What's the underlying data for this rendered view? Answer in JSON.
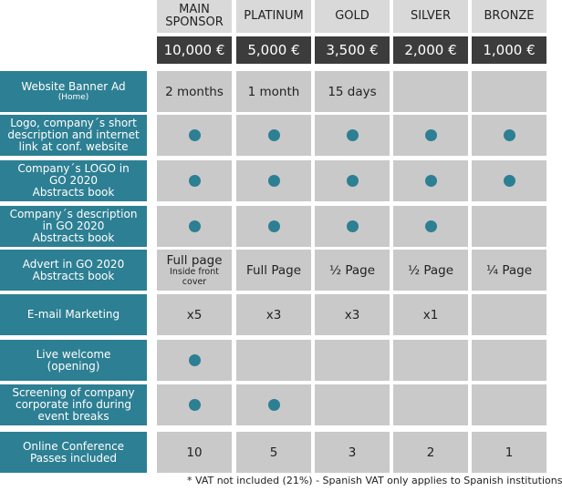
{
  "tiers": [
    "MAIN SPONSOR",
    "PLATINUM",
    "GOLD",
    "SILVER",
    "BRONZE"
  ],
  "tier_lines": [
    [
      "MAIN",
      "SPONSOR"
    ],
    [
      "PLATINUM"
    ],
    [
      "GOLD"
    ],
    [
      "SILVER"
    ],
    [
      "BRONZE"
    ]
  ],
  "prices": [
    "10,000 €",
    "5,000 €",
    "3,500 €",
    "2,000 €",
    "1,000 €"
  ],
  "rows": [
    {
      "label": [
        "Website Banner Ad"
      ],
      "sublabel": "(Home)",
      "cells": [
        {
          "text": "2 months"
        },
        {
          "text": "1 month"
        },
        {
          "text": "15 days"
        },
        {},
        {}
      ]
    },
    {
      "label": [
        "Logo, company´s short",
        "description and internet",
        "link at conf. website"
      ],
      "cells": [
        {
          "dot": true
        },
        {
          "dot": true
        },
        {
          "dot": true
        },
        {
          "dot": true
        },
        {
          "dot": true
        }
      ]
    },
    {
      "label": [
        "Company´s LOGO in",
        "GO 2020",
        "Abstracts book"
      ],
      "cells": [
        {
          "dot": true
        },
        {
          "dot": true
        },
        {
          "dot": true
        },
        {
          "dot": true
        },
        {
          "dot": true
        }
      ]
    },
    {
      "label": [
        "Company´s description",
        "in GO 2020",
        "Abstracts book"
      ],
      "cells": [
        {
          "dot": true
        },
        {
          "dot": true
        },
        {
          "dot": true
        },
        {
          "dot": true
        },
        {}
      ]
    },
    {
      "label": [
        "Advert in GO 2020",
        "Abstracts book"
      ],
      "cells": [
        {
          "text": "Full page",
          "sub": "Inside front cover"
        },
        {
          "text": "Full Page"
        },
        {
          "text": "½ Page"
        },
        {
          "text": "½ Page"
        },
        {
          "text": "¼ Page"
        }
      ]
    },
    {
      "label": [
        "E-mail Marketing"
      ],
      "cells": [
        {
          "text": "x5"
        },
        {
          "text": "x3"
        },
        {
          "text": "x3"
        },
        {
          "text": "x1"
        },
        {}
      ]
    },
    {
      "label": [
        "Live welcome",
        "(opening)"
      ],
      "cells": [
        {
          "dot": true
        },
        {},
        {},
        {},
        {}
      ]
    },
    {
      "label": [
        "Screening of company",
        "corporate info during",
        "event breaks"
      ],
      "cells": [
        {
          "dot": true
        },
        {
          "dot": true
        },
        {},
        {},
        {}
      ]
    },
    {
      "label": [
        "Online Conference",
        "Passes included"
      ],
      "cells": [
        {
          "text": "10"
        },
        {
          "text": "5"
        },
        {
          "text": "3"
        },
        {
          "text": "2"
        },
        {
          "text": "1"
        }
      ]
    }
  ],
  "footnote": "* VAT not included (21%) - Spanish VAT only applies to Spanish institutions"
}
